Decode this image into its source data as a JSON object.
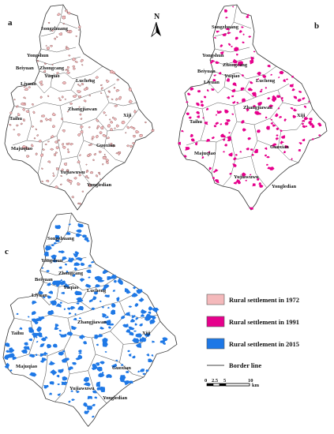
{
  "panels": [
    {
      "label": "a",
      "places": [
        "Songzhuang",
        "Yongshun",
        "Beiyuan",
        "Zhongcang",
        "Yuqiao",
        "Liyuan",
        "Lucheng",
        "Zhangjiawan",
        "Xiji",
        "Taihu",
        "Majuqiao",
        "Guoxian",
        "Yujiawuwu",
        "Yongledian"
      ]
    },
    {
      "label": "b",
      "places": [
        "Songzhuang",
        "Yongshun",
        "Beiyuan",
        "Zhongcang",
        "Yuqiao",
        "Liyuan",
        "Lucheng",
        "Zhangjiawan",
        "Xiji",
        "Taihu",
        "Majuqiao",
        "Guoxian",
        "Yujiawuwu",
        "Yongledian"
      ]
    },
    {
      "label": "c",
      "places": [
        "Songzhuang",
        "Yongshun",
        "Beiyuan",
        "Zhongcang",
        "Yuqiao",
        "Liyuan",
        "Lucheng",
        "Zhangjiawan",
        "Xiji",
        "Taihu",
        "Majuqiao",
        "Guoxian",
        "Yujiawuwu",
        "Yongledian"
      ]
    }
  ],
  "north_arrow": {
    "label": "N"
  },
  "legend": {
    "items": [
      {
        "label": "Rural settlement in 1972",
        "color": "#f4b9bb"
      },
      {
        "label": "Rural settlement in 1991",
        "color": "#e6008c"
      },
      {
        "label": "Rural settlement in 2015",
        "color": "#1e78e6"
      }
    ],
    "border_label": "Border line"
  },
  "scale_bar": {
    "ticks": [
      "0",
      "2.5",
      "5",
      "10"
    ],
    "unit": "km"
  }
}
